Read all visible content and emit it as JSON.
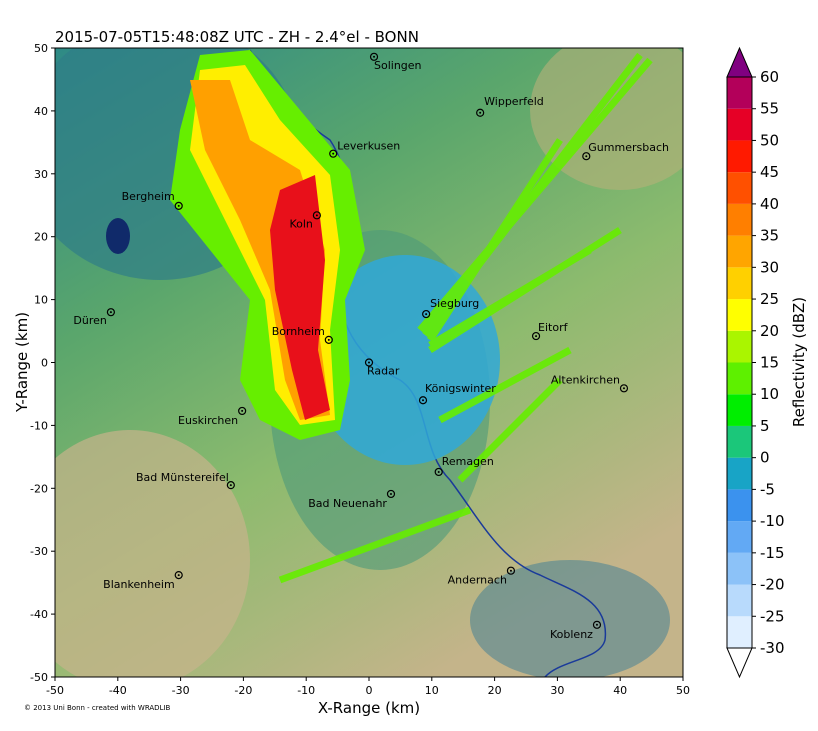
{
  "chart_data": {
    "type": "radar-map",
    "title": "2015-07-05T15:48:08Z UTC - ZH - 2.4°el - BONN",
    "x_label": "X-Range (km)",
    "y_label": "Y-Range (km)",
    "credit": "© 2013 Uni Bonn - created with WRADLIB",
    "xlim": [
      -50,
      50
    ],
    "ylim": [
      -50,
      50
    ],
    "xticks": [
      -50,
      -40,
      -30,
      -20,
      -10,
      0,
      10,
      20,
      30,
      40,
      50
    ],
    "yticks": [
      -50,
      -40,
      -30,
      -20,
      -10,
      0,
      10,
      20,
      30,
      40,
      50
    ],
    "cities": [
      {
        "name": "Solingen",
        "x": 0.8,
        "y": 48.6
      },
      {
        "name": "Wipperfeld",
        "x": 17.7,
        "y": 39.7
      },
      {
        "name": "Leverkusen",
        "x": -5.7,
        "y": 33.2
      },
      {
        "name": "Gummersbach",
        "x": 34.6,
        "y": 32.8
      },
      {
        "name": "Bergheim",
        "x": -30.3,
        "y": 24.9
      },
      {
        "name": "Koln",
        "x": -8.3,
        "y": 23.4
      },
      {
        "name": "Siegburg",
        "x": 9.1,
        "y": 7.7
      },
      {
        "name": "Düren",
        "x": -41.1,
        "y": 8.0
      },
      {
        "name": "Eitorf",
        "x": 26.6,
        "y": 4.2
      },
      {
        "name": "Bornheim",
        "x": -6.4,
        "y": 3.6
      },
      {
        "name": "Radar",
        "x": 0,
        "y": 0
      },
      {
        "name": "Altenkirchen",
        "x": 40.6,
        "y": -4.1
      },
      {
        "name": "Königswinter",
        "x": 8.6,
        "y": -6.0
      },
      {
        "name": "Euskirchen",
        "x": -20.2,
        "y": -7.7
      },
      {
        "name": "Remagen",
        "x": 11.1,
        "y": -17.4
      },
      {
        "name": "Bad Münstereifel",
        "x": -22.0,
        "y": -19.5
      },
      {
        "name": "Bad Neuenahr",
        "x": 3.5,
        "y": -20.9
      },
      {
        "name": "Blankenheim",
        "x": -30.3,
        "y": -33.8
      },
      {
        "name": "Andernach",
        "x": 22.6,
        "y": -33.1
      },
      {
        "name": "Koblenz",
        "x": 36.3,
        "y": -41.7
      }
    ],
    "colorbar": {
      "label": "Reflectivity (dBZ)",
      "ticks": [
        -30,
        -25,
        -20,
        -15,
        -10,
        -5,
        0,
        5,
        10,
        15,
        20,
        25,
        30,
        35,
        40,
        45,
        50,
        55,
        60
      ],
      "colors": [
        "#e0efff",
        "#b8dafc",
        "#8cc2f8",
        "#62a9f4",
        "#3b92ee",
        "#18a4c6",
        "#1bc77a",
        "#00ee00",
        "#5ef000",
        "#aaf500",
        "#ffff00",
        "#ffd000",
        "#ffa500",
        "#ff7f00",
        "#ff5000",
        "#ff1a00",
        "#e60026",
        "#b3005a"
      ],
      "under_color": "#ffffff",
      "over_color": "#800080"
    }
  }
}
